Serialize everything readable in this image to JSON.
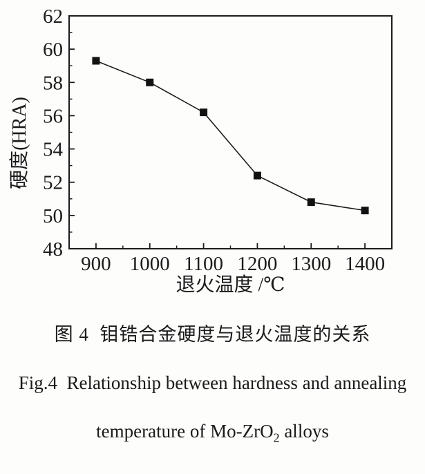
{
  "figure": {
    "caption_zh": "图 4  钼锆合金硬度与退火温度的关系",
    "caption_en_line1": "Fig.4  Relationship between hardness and annealing",
    "caption_en_line2_pre": "temperature of Mo-ZrO",
    "caption_en_line2_sub": "2",
    "caption_en_line2_post": " alloys"
  },
  "chart_data": {
    "type": "line",
    "title": "",
    "xlabel": "退火温度 /℃",
    "ylabel": "硬度(HRA)",
    "series": [
      {
        "name": "hardness-vs-annealing-temperature",
        "x": [
          900,
          1000,
          1100,
          1200,
          1300,
          1400
        ],
        "y": [
          59.3,
          58.0,
          56.2,
          52.4,
          50.8,
          50.3
        ]
      }
    ],
    "xlim": [
      850,
      1450
    ],
    "ylim": [
      48,
      62
    ],
    "xticks": [
      900,
      1000,
      1100,
      1200,
      1300,
      1400
    ],
    "yticks": [
      48,
      50,
      52,
      54,
      56,
      58,
      60,
      62
    ],
    "x_minor_ticks": [
      950,
      1050,
      1150,
      1250,
      1350
    ],
    "y_minor_ticks": [
      49,
      51,
      53,
      55,
      57,
      59,
      61
    ],
    "grid": false,
    "legend": "none",
    "marker": "filled-square",
    "ink_color": "#1c1c1c",
    "marker_color": "#121212",
    "background_color": "#fdfdfc"
  }
}
